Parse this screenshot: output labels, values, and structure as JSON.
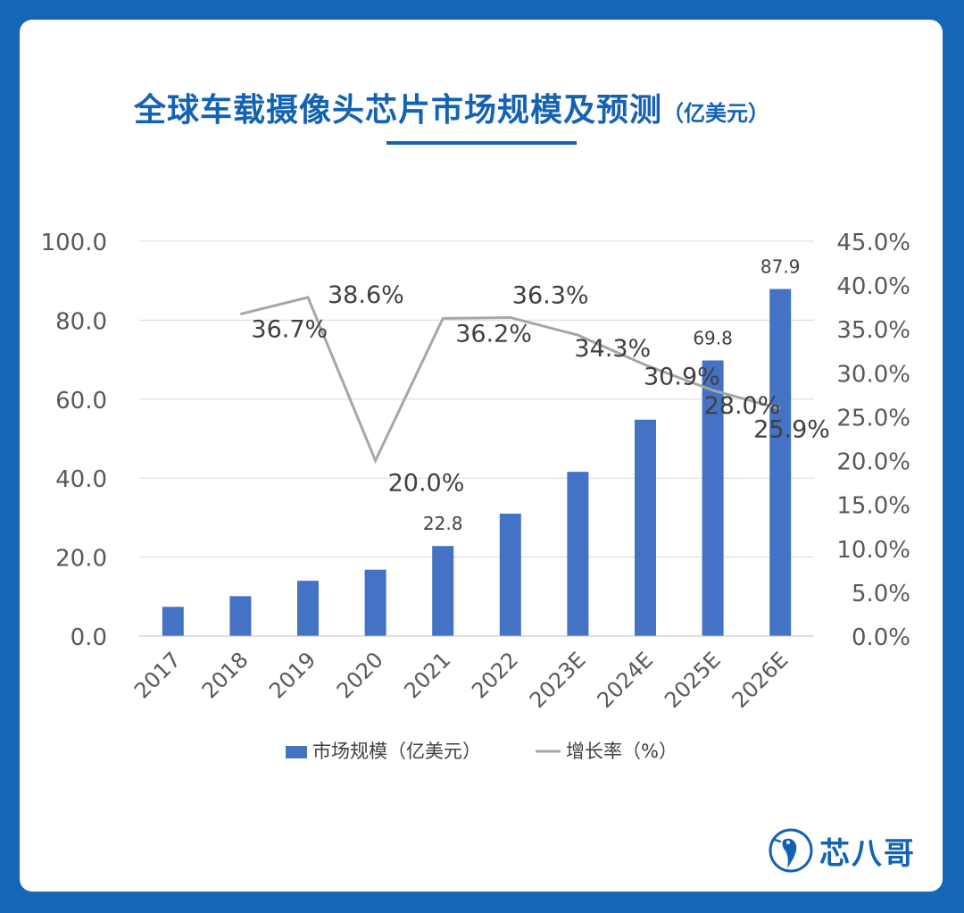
{
  "title": "全球车载摄像头芯片市场规模及预测",
  "title_unit": "（亿美元）",
  "brand": {
    "name": "芯八哥",
    "logo_icon": "bird-logo-icon"
  },
  "colors": {
    "background": "#1565b8",
    "title": "#1462b4",
    "bar": "#4472c4",
    "line": "#a6a6a6"
  },
  "chart_data": {
    "type": "bar",
    "categories": [
      "2017",
      "2018",
      "2019",
      "2020",
      "2021",
      "2022",
      "2023E",
      "2024E",
      "2025E",
      "2026E"
    ],
    "series": [
      {
        "name": "市场规模（亿美元）",
        "type": "bar",
        "axis": "left",
        "values": [
          7.4,
          10.1,
          14.0,
          16.8,
          22.8,
          31.0,
          41.6,
          54.8,
          69.8,
          87.9
        ],
        "data_labels": [
          null,
          null,
          null,
          null,
          "22.8",
          null,
          null,
          null,
          "69.8",
          "87.9"
        ]
      },
      {
        "name": "增长率（%）",
        "type": "line",
        "axis": "right",
        "x": [
          "2018",
          "2019",
          "2020",
          "2021",
          "2022",
          "2023E",
          "2024E",
          "2025E",
          "2026E"
        ],
        "values": [
          36.7,
          38.6,
          20.0,
          36.2,
          36.3,
          34.3,
          30.9,
          28.0,
          25.9
        ],
        "data_labels": [
          "36.7%",
          "38.6%",
          "20.0%",
          "36.2%",
          "36.3%",
          "34.3%",
          "30.9%",
          "28.0%",
          "25.9%"
        ]
      }
    ],
    "y_left": {
      "ylim": [
        0,
        100
      ],
      "ticks": [
        "0.0",
        "20.0",
        "40.0",
        "60.0",
        "80.0",
        "100.0"
      ]
    },
    "y_right": {
      "ylim": [
        0,
        45
      ],
      "ticks": [
        "0.0%",
        "5.0%",
        "10.0%",
        "15.0%",
        "20.0%",
        "25.0%",
        "30.0%",
        "35.0%",
        "40.0%",
        "45.0%"
      ]
    },
    "grid": true,
    "legend": {
      "placement": "bottom",
      "entries": [
        {
          "label": "市场规模（亿美元）",
          "marker": "bar"
        },
        {
          "label": "增长率（%）",
          "marker": "line"
        }
      ]
    }
  }
}
